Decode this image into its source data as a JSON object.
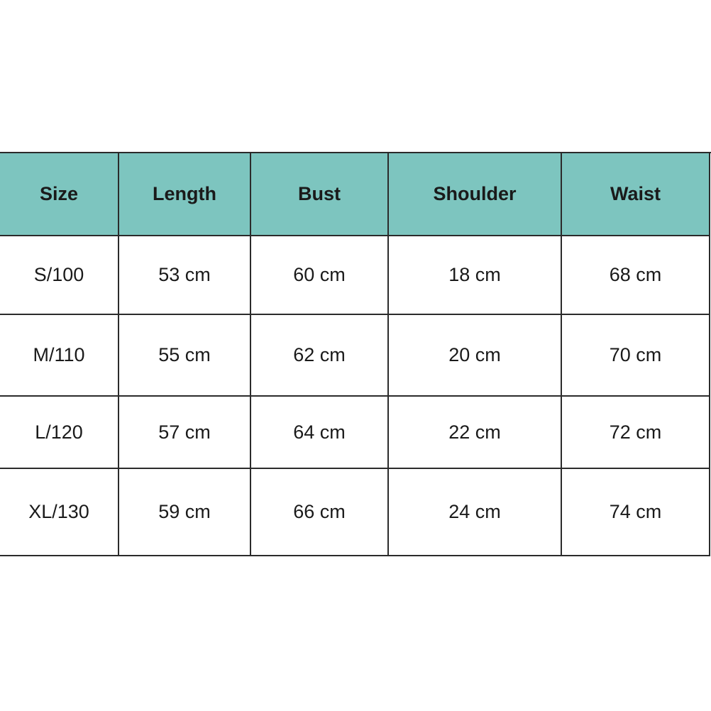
{
  "table": {
    "header": [
      "Size",
      "Length",
      "Bust",
      "Shoulder",
      "Waist"
    ],
    "rows": [
      [
        "S/100",
        "53 cm",
        "60 cm",
        "18 cm",
        "68 cm"
      ],
      [
        "M/110",
        "55 cm",
        "62 cm",
        "20 cm",
        "70 cm"
      ],
      [
        "L/120",
        "57 cm",
        "64 cm",
        "22 cm",
        "72 cm"
      ],
      [
        "XL/130",
        "59 cm",
        "66 cm",
        "24 cm",
        "74 cm"
      ]
    ]
  }
}
